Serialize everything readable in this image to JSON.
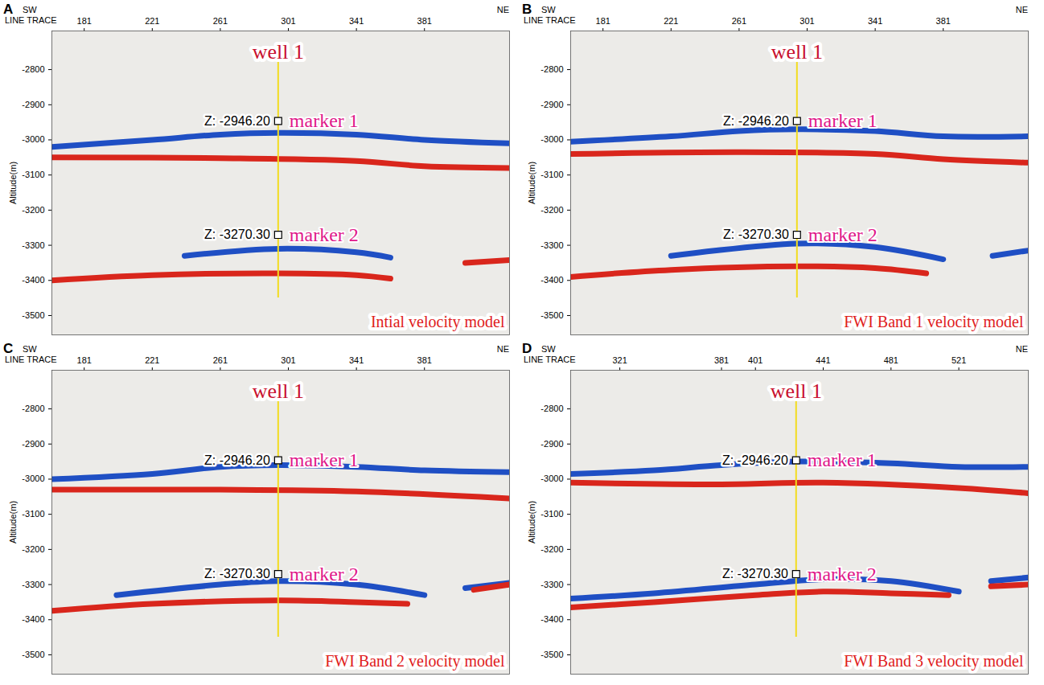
{
  "chart_data": [
    {
      "type": "line",
      "letter": "A",
      "title": "Intial velocity model",
      "x_label": "LINE TRACE",
      "direction_labels": [
        "SW",
        "NE"
      ],
      "y_label": "Altitude(m)",
      "xlim": [
        162,
        431
      ],
      "xticks": [
        181,
        221,
        261,
        301,
        341,
        381
      ],
      "ylim": [
        -3555,
        -2690
      ],
      "yticks": [
        -2800,
        -2900,
        -3000,
        -3100,
        -3200,
        -3300,
        -3400,
        -3500
      ],
      "well": {
        "label": "well 1",
        "x": 295,
        "y_top": -2740,
        "y_bottom": -3450
      },
      "markers": [
        {
          "label": "marker 1",
          "z_label": "Z: -2946.20",
          "z": -2946.2
        },
        {
          "label": "marker 2",
          "z_label": "Z: -3270.30",
          "z": -3270.3
        }
      ],
      "series": [
        {
          "color": "#1f4fc4",
          "x": [
            162,
            221,
            261,
            295,
            341,
            381,
            431
          ],
          "values": [
            -3020,
            -3000,
            -2985,
            -2980,
            -2985,
            -3000,
            -3010
          ]
        },
        {
          "color": "#d9261c",
          "x": [
            162,
            261,
            341,
            381,
            431
          ],
          "values": [
            -3050,
            -3052,
            -3060,
            -3075,
            -3080
          ]
        },
        {
          "color": "#1f4fc4",
          "x": [
            240,
            295,
            341,
            361
          ],
          "values": [
            -3330,
            -3310,
            -3320,
            -3335
          ]
        },
        {
          "color": "#d9261c",
          "x": [
            162,
            221,
            295,
            341,
            361,
            385,
            405,
            431
          ],
          "values": [
            -3400,
            -3385,
            -3380,
            -3385,
            -3395,
            null,
            -3350,
            -3342
          ]
        }
      ]
    },
    {
      "type": "line",
      "letter": "B",
      "title": "FWI Band 1 velocity model",
      "x_label": "LINE TRACE",
      "direction_labels": [
        "SW",
        "NE"
      ],
      "y_label": "Altitude(m)",
      "xlim": [
        162,
        431
      ],
      "xticks": [
        181,
        221,
        261,
        301,
        341,
        381
      ],
      "ylim": [
        -3555,
        -2690
      ],
      "yticks": [
        -2800,
        -2900,
        -3000,
        -3100,
        -3200,
        -3300,
        -3400,
        -3500
      ],
      "well": {
        "label": "well 1",
        "x": 295,
        "y_top": -2740,
        "y_bottom": -3450
      },
      "markers": [
        {
          "label": "marker 1",
          "z_label": "Z: -2946.20",
          "z": -2946.2
        },
        {
          "label": "marker 2",
          "z_label": "Z: -3270.30",
          "z": -3270.3
        }
      ],
      "series": [
        {
          "color": "#1f4fc4",
          "x": [
            162,
            221,
            261,
            295,
            341,
            381,
            431
          ],
          "values": [
            -3005,
            -2990,
            -2975,
            -2970,
            -2975,
            -2990,
            -2990
          ]
        },
        {
          "color": "#d9261c",
          "x": [
            162,
            261,
            341,
            381,
            431
          ],
          "values": [
            -3040,
            -3035,
            -3040,
            -3055,
            -3065
          ]
        },
        {
          "color": "#1f4fc4",
          "x": [
            221,
            295,
            341,
            381,
            400,
            410,
            431
          ],
          "values": [
            -3330,
            -3295,
            -3305,
            -3340,
            null,
            -3330,
            -3315
          ]
        },
        {
          "color": "#d9261c",
          "x": [
            162,
            221,
            295,
            341,
            371
          ],
          "values": [
            -3390,
            -3370,
            -3360,
            -3365,
            -3380
          ]
        }
      ]
    },
    {
      "type": "line",
      "letter": "C",
      "title": "FWI Band 2 velocity model",
      "x_label": "LINE TRACE",
      "direction_labels": [
        "SW",
        "NE"
      ],
      "y_label": "Altitude(m)",
      "xlim": [
        162,
        431
      ],
      "xticks": [
        181,
        221,
        261,
        301,
        341,
        381
      ],
      "ylim": [
        -3555,
        -2690
      ],
      "yticks": [
        -2800,
        -2900,
        -3000,
        -3100,
        -3200,
        -3300,
        -3400,
        -3500
      ],
      "well": {
        "label": "well 1",
        "x": 295,
        "y_top": -2740,
        "y_bottom": -3450
      },
      "markers": [
        {
          "label": "marker 1",
          "z_label": "Z: -2946.20",
          "z": -2946.2
        },
        {
          "label": "marker 2",
          "z_label": "Z: -3270.30",
          "z": -3270.3
        }
      ],
      "series": [
        {
          "color": "#1f4fc4",
          "x": [
            162,
            221,
            261,
            295,
            341,
            381,
            431
          ],
          "values": [
            -3000,
            -2985,
            -2965,
            -2960,
            -2965,
            -2975,
            -2980
          ]
        },
        {
          "color": "#d9261c",
          "x": [
            162,
            261,
            341,
            431
          ],
          "values": [
            -3030,
            -3030,
            -3035,
            -3055
          ]
        },
        {
          "color": "#1f4fc4",
          "x": [
            200,
            261,
            295,
            341,
            381,
            395,
            405,
            431
          ],
          "values": [
            -3330,
            -3300,
            -3290,
            -3300,
            -3330,
            null,
            -3310,
            -3295
          ]
        },
        {
          "color": "#d9261c",
          "x": [
            162,
            221,
            295,
            341,
            371,
            390,
            410,
            431
          ],
          "values": [
            -3375,
            -3355,
            -3345,
            -3350,
            -3355,
            null,
            -3315,
            -3300
          ]
        }
      ]
    },
    {
      "type": "line",
      "letter": "D",
      "title": "FWI Band 3 velocity model",
      "x_label": "LINE TRACE",
      "direction_labels": [
        "SW",
        "NE"
      ],
      "y_label": "Altitude(m)",
      "xlim": [
        292,
        562
      ],
      "xticks": [
        321,
        381,
        401,
        441,
        481,
        521
      ],
      "ylim": [
        -3555,
        -2690
      ],
      "yticks": [
        -2800,
        -2900,
        -3000,
        -3100,
        -3200,
        -3300,
        -3400,
        -3500
      ],
      "well": {
        "label": "well 1",
        "x": 425,
        "y_top": -2740,
        "y_bottom": -3450
      },
      "markers": [
        {
          "label": "marker 1",
          "z_label": "Z: -2946.20",
          "z": -2946.2
        },
        {
          "label": "marker 2",
          "z_label": "Z: -3270.30",
          "z": -3270.3
        }
      ],
      "series": [
        {
          "color": "#1f4fc4",
          "x": [
            292,
            341,
            381,
            425,
            481,
            521,
            562
          ],
          "values": [
            -2985,
            -2975,
            -2960,
            -2950,
            -2955,
            -2965,
            -2965
          ]
        },
        {
          "color": "#d9261c",
          "x": [
            292,
            381,
            441,
            521,
            562
          ],
          "values": [
            -3010,
            -3015,
            -3010,
            -3025,
            -3040
          ]
        },
        {
          "color": "#1f4fc4",
          "x": [
            292,
            341,
            401,
            441,
            481,
            521,
            530,
            540,
            562
          ],
          "values": [
            -3340,
            -3325,
            -3300,
            -3285,
            -3290,
            -3320,
            null,
            -3290,
            -3280
          ]
        },
        {
          "color": "#d9261c",
          "x": [
            292,
            341,
            401,
            441,
            481,
            515,
            528,
            540,
            562
          ],
          "values": [
            -3365,
            -3350,
            -3330,
            -3320,
            -3325,
            -3330,
            null,
            -3305,
            -3300
          ]
        }
      ]
    }
  ]
}
